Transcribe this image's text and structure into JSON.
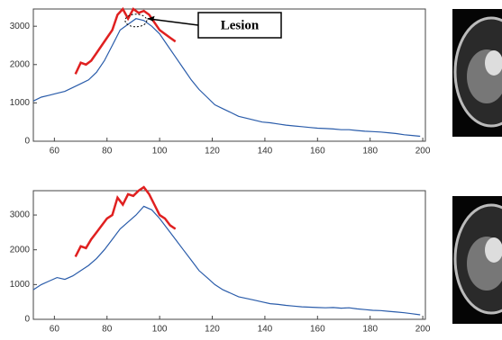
{
  "chart_data": [
    {
      "type": "line",
      "xlim": [
        52,
        201
      ],
      "xticks": [
        60,
        80,
        100,
        120,
        140,
        160,
        180,
        200
      ],
      "ylim": [
        0,
        3450
      ],
      "yticks": [
        0,
        1000,
        2000,
        3000
      ],
      "annotation": "Lesion",
      "series": [
        {
          "color": "#2a5caa",
          "x": [
            52,
            55,
            58,
            61,
            64,
            67,
            70,
            73,
            76,
            79,
            82,
            85,
            88,
            91,
            94,
            97,
            100,
            103,
            106,
            109,
            112,
            115,
            118,
            121,
            124,
            127,
            130,
            133,
            136,
            139,
            142,
            145,
            148,
            151,
            154,
            157,
            160,
            163,
            166,
            169,
            172,
            175,
            178,
            181,
            184,
            187,
            190,
            193,
            196,
            199
          ],
          "values": [
            1050,
            1150,
            1200,
            1250,
            1300,
            1400,
            1500,
            1600,
            1800,
            2100,
            2500,
            2900,
            3050,
            3200,
            3150,
            3000,
            2800,
            2500,
            2200,
            1900,
            1600,
            1350,
            1150,
            950,
            850,
            750,
            650,
            600,
            550,
            500,
            480,
            450,
            420,
            400,
            380,
            360,
            340,
            330,
            320,
            300,
            300,
            280,
            260,
            250,
            240,
            220,
            200,
            170,
            150,
            130
          ]
        },
        {
          "color": "#e02020",
          "x": [
            68,
            70,
            72,
            74,
            76,
            78,
            80,
            82,
            84,
            86,
            88,
            90,
            92,
            94,
            96,
            98,
            100,
            102,
            104,
            106
          ],
          "values": [
            1750,
            2050,
            2000,
            2100,
            2300,
            2500,
            2700,
            2900,
            3300,
            3450,
            3200,
            3450,
            3350,
            3400,
            3300,
            3100,
            2900,
            2800,
            2700,
            2600
          ]
        }
      ]
    },
    {
      "type": "line",
      "xlim": [
        52,
        201
      ],
      "xticks": [
        60,
        80,
        100,
        120,
        140,
        160,
        180,
        200
      ],
      "ylim": [
        0,
        3700
      ],
      "yticks": [
        0,
        1000,
        2000,
        3000
      ],
      "series": [
        {
          "color": "#2a5caa",
          "x": [
            52,
            55,
            58,
            61,
            64,
            67,
            70,
            73,
            76,
            79,
            82,
            85,
            88,
            91,
            94,
            97,
            100,
            103,
            106,
            109,
            112,
            115,
            118,
            121,
            124,
            127,
            130,
            133,
            136,
            139,
            142,
            145,
            148,
            151,
            154,
            157,
            160,
            163,
            166,
            169,
            172,
            175,
            178,
            181,
            184,
            187,
            190,
            193,
            196,
            199
          ],
          "values": [
            850,
            1000,
            1100,
            1200,
            1150,
            1250,
            1400,
            1550,
            1750,
            2000,
            2300,
            2600,
            2800,
            3000,
            3250,
            3150,
            2900,
            2600,
            2300,
            2000,
            1700,
            1400,
            1200,
            1000,
            850,
            750,
            650,
            600,
            550,
            500,
            450,
            430,
            400,
            380,
            360,
            350,
            340,
            330,
            340,
            320,
            330,
            300,
            280,
            260,
            250,
            230,
            210,
            190,
            160,
            130
          ]
        },
        {
          "color": "#e02020",
          "x": [
            68,
            70,
            72,
            74,
            76,
            78,
            80,
            82,
            84,
            86,
            88,
            90,
            92,
            94,
            96,
            98,
            100,
            102,
            104,
            106
          ],
          "values": [
            1800,
            2100,
            2050,
            2300,
            2500,
            2700,
            2900,
            3000,
            3500,
            3300,
            3600,
            3550,
            3700,
            3800,
            3600,
            3300,
            3000,
            2900,
            2700,
            2600
          ]
        }
      ]
    }
  ]
}
